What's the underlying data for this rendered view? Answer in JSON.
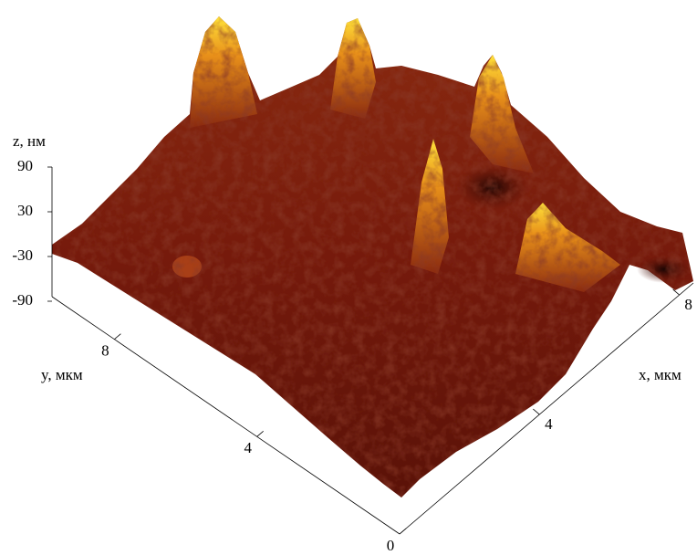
{
  "chart_data": {
    "type": "surface3d",
    "zlabel": "z, нм",
    "ylabel": "y, мкм",
    "xlabel": "x, мкм",
    "zlim": [
      -90,
      90
    ],
    "zticks": [
      90,
      30,
      -30,
      -90
    ],
    "ylim": [
      0,
      9.75
    ],
    "yticks": [
      0,
      4,
      8
    ],
    "xlim": [
      0,
      8.4
    ],
    "xticks": [
      4,
      8
    ]
  }
}
